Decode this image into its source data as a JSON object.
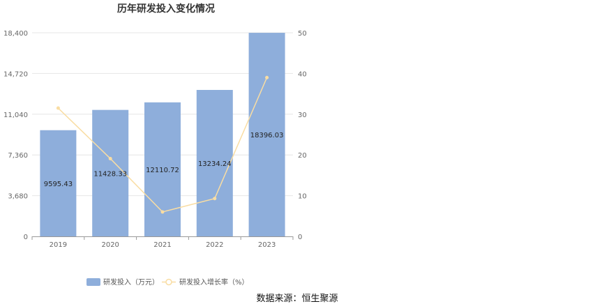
{
  "chart_data": {
    "type": "bar",
    "title": "历年研发投入变化情况",
    "categories": [
      "2019",
      "2020",
      "2021",
      "2022",
      "2023"
    ],
    "series": [
      {
        "name": "研发投入（万元）",
        "type": "bar",
        "axis": "left",
        "color": "#8eaedb",
        "values": [
          9595.43,
          11428.33,
          12110.72,
          13234.24,
          18396.03
        ],
        "labels": [
          "9595.43",
          "11428.33",
          "12110.72",
          "13234.24",
          "18396.03"
        ]
      },
      {
        "name": "研发投入增长率（%）",
        "type": "line",
        "axis": "right",
        "color": "#f9dda3",
        "values": [
          31.5,
          19.1,
          6.0,
          9.3,
          39.0
        ]
      }
    ],
    "y_left": {
      "ticks": [
        "0",
        "3,680",
        "7,360",
        "11,040",
        "14,720",
        "18,400"
      ],
      "min": 0,
      "max": 18400
    },
    "y_right": {
      "ticks": [
        "0",
        "10",
        "20",
        "30",
        "40",
        "50"
      ],
      "min": 0,
      "max": 50
    },
    "grid": true,
    "legend_position": "bottom"
  },
  "source_text": "数据来源：恒生聚源"
}
